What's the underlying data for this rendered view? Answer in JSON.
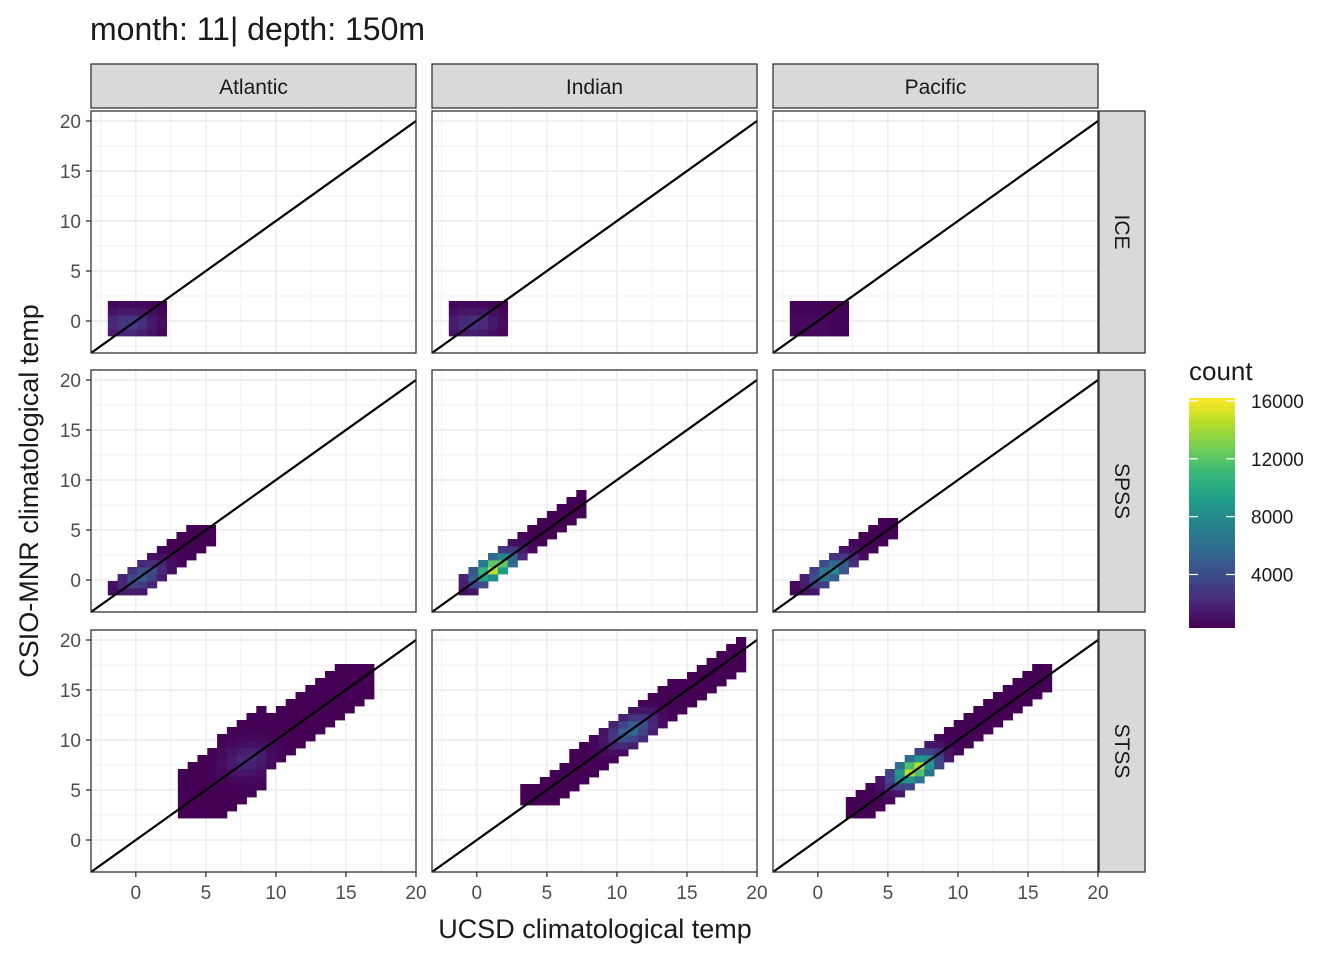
{
  "chart_data": {
    "type": "heatmap",
    "title": "month: 11| depth: 150m",
    "xlabel": "UCSD climatological temp",
    "ylabel": "CSIO-MNR climatological temp",
    "columns": [
      "Atlantic",
      "Indian",
      "Pacific"
    ],
    "rows": [
      "ICE",
      "SPSS",
      "STSS"
    ],
    "xlim": [
      -3.2,
      20
    ],
    "ylim": [
      -3.2,
      21
    ],
    "x_ticks": [
      0,
      5,
      10,
      15,
      20
    ],
    "y_ticks": [
      0,
      5,
      10,
      15,
      20
    ],
    "grid": true,
    "reference_line": "y = x",
    "bin_width": 0.7,
    "legend": {
      "title": "count",
      "placement": "right",
      "ticks": [
        4000,
        8000,
        12000,
        16000
      ],
      "min": 300,
      "max": 16200,
      "colors": [
        "#440154",
        "#482878",
        "#3e4a89",
        "#31688e",
        "#26828e",
        "#1f9e89",
        "#35b779",
        "#6ece58",
        "#b5de2b",
        "#fde725"
      ]
    },
    "panels": [
      {
        "column": "Atlantic",
        "row": "ICE",
        "x_range": [
          -2,
          2
        ],
        "y_range": [
          -1.5,
          1.8
        ],
        "trend": [
          0,
          0
        ],
        "band": 1.7,
        "peak": 3500,
        "peak_at": [
          -0.5,
          -0.5
        ],
        "step_profile": null
      },
      {
        "column": "Indian",
        "row": "ICE",
        "x_range": [
          -2,
          2
        ],
        "y_range": [
          -1.5,
          1.8
        ],
        "trend": [
          0,
          0
        ],
        "band": 1.7,
        "peak": 2800,
        "peak_at": [
          -0.3,
          -0.3
        ],
        "step_profile": null
      },
      {
        "column": "Pacific",
        "row": "ICE",
        "x_range": [
          -2,
          2
        ],
        "y_range": [
          -1.5,
          1.8
        ],
        "trend": [
          0,
          0
        ],
        "band": 1.7,
        "peak": 800,
        "peak_at": [
          -0.5,
          -0.5
        ],
        "step_profile": null
      },
      {
        "column": "Atlantic",
        "row": "SPSS",
        "x_range": [
          -2,
          5.7
        ],
        "y_range": [
          -1.5,
          5.5
        ],
        "trend": [
          0,
          0.95
        ],
        "band": 1.6,
        "peak": 5200,
        "peak_at": [
          0.5,
          0.4
        ],
        "step_profile": null
      },
      {
        "column": "Indian",
        "row": "SPSS",
        "x_range": [
          -1.3,
          7.8
        ],
        "y_range": [
          -1.5,
          8.8
        ],
        "trend": [
          0,
          1
        ],
        "band": 1.4,
        "peak": 16000,
        "peak_at": [
          1.2,
          1.2
        ],
        "step_profile": null
      },
      {
        "column": "Pacific",
        "row": "SPSS",
        "x_range": [
          -2,
          5.7
        ],
        "y_range": [
          -1.5,
          5.7
        ],
        "trend": [
          0,
          1
        ],
        "band": 1.5,
        "peak": 8500,
        "peak_at": [
          0.9,
          0.9
        ],
        "step_profile": null
      },
      {
        "column": "Atlantic",
        "row": "STSS",
        "x_range": [
          3,
          16.5
        ],
        "y_range": [
          2.2,
          17.5
        ],
        "trend": [
          0.3,
          1
        ],
        "band": 2.7,
        "peak": 2200,
        "peak_at": [
          8,
          8
        ],
        "step_profile": [
          [
            6,
            3.5
          ],
          [
            9,
            4.2
          ],
          [
            12,
            2.8
          ],
          [
            14,
            3
          ],
          [
            17,
            2.6
          ]
        ]
      },
      {
        "column": "Indian",
        "row": "STSS",
        "x_range": [
          3.1,
          18.9
        ],
        "y_range": [
          3.5,
          20.1
        ],
        "trend": [
          0,
          1
        ],
        "band": 1.8,
        "peak": 6200,
        "peak_at": [
          11,
          11
        ],
        "step_profile": null
      },
      {
        "column": "Pacific",
        "row": "STSS",
        "x_range": [
          2,
          16.5
        ],
        "y_range": [
          2.2,
          17.5
        ],
        "trend": [
          0.3,
          1
        ],
        "band": 1.7,
        "peak": 16200,
        "peak_at": [
          7,
          7
        ],
        "step_profile": null
      }
    ]
  }
}
